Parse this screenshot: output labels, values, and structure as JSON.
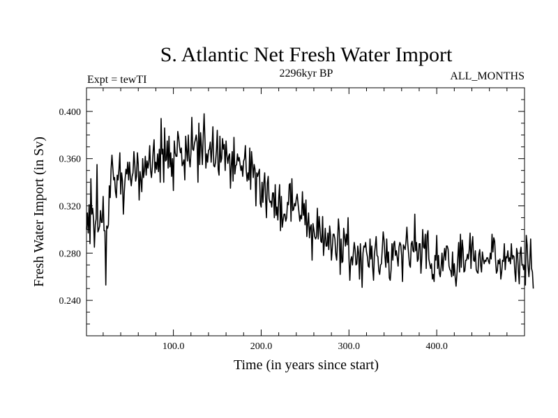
{
  "chart_data": {
    "type": "line",
    "title": "S. Atlantic Net Fresh Water Import",
    "subtitle_left": "Expt = tewTI",
    "subtitle_center": "2296kyr BP",
    "subtitle_right": "ALL_MONTHS",
    "xlabel": "Time (in years since start)",
    "ylabel": "Fresh Water Import (in Sv)",
    "xlim": [
      1,
      500
    ],
    "ylim": [
      0.21,
      0.42
    ],
    "x_ticks": [
      100,
      200,
      300,
      400
    ],
    "x_tick_labels": [
      "100.0",
      "200.0",
      "300.0",
      "400.0"
    ],
    "y_ticks": [
      0.24,
      0.28,
      0.32,
      0.36,
      0.4
    ],
    "y_tick_labels": [
      "0.240",
      "0.280",
      "0.320",
      "0.360",
      "0.400"
    ],
    "grid": false,
    "series": [
      {
        "name": "Fresh Water Import",
        "color": "#000000",
        "x_start": 1,
        "x_step": 1,
        "values": [
          0.3,
          0.314,
          0.297,
          0.321,
          0.288,
          0.343,
          0.313,
          0.318,
          0.309,
          0.285,
          0.304,
          0.309,
          0.355,
          0.298,
          0.3,
          0.303,
          0.316,
          0.306,
          0.306,
          0.328,
          0.299,
          0.299,
          0.253,
          0.303,
          0.301,
          0.304,
          0.337,
          0.327,
          0.351,
          0.363,
          0.352,
          0.342,
          0.344,
          0.332,
          0.327,
          0.346,
          0.342,
          0.351,
          0.365,
          0.33,
          0.348,
          0.341,
          0.313,
          0.331,
          0.343,
          0.351,
          0.347,
          0.357,
          0.342,
          0.357,
          0.344,
          0.337,
          0.345,
          0.348,
          0.366,
          0.355,
          0.341,
          0.345,
          0.365,
          0.355,
          0.325,
          0.349,
          0.342,
          0.332,
          0.36,
          0.344,
          0.35,
          0.362,
          0.346,
          0.358,
          0.352,
          0.357,
          0.371,
          0.35,
          0.344,
          0.353,
          0.367,
          0.376,
          0.348,
          0.357,
          0.351,
          0.364,
          0.349,
          0.368,
          0.34,
          0.394,
          0.364,
          0.368,
          0.34,
          0.386,
          0.358,
          0.359,
          0.375,
          0.352,
          0.379,
          0.353,
          0.365,
          0.345,
          0.36,
          0.333,
          0.375,
          0.365,
          0.362,
          0.362,
          0.383,
          0.378,
          0.37,
          0.365,
          0.369,
          0.354,
          0.356,
          0.359,
          0.342,
          0.379,
          0.367,
          0.358,
          0.38,
          0.36,
          0.353,
          0.365,
          0.395,
          0.368,
          0.367,
          0.373,
          0.376,
          0.38,
          0.374,
          0.34,
          0.39,
          0.355,
          0.382,
          0.37,
          0.355,
          0.379,
          0.398,
          0.375,
          0.352,
          0.364,
          0.357,
          0.367,
          0.368,
          0.374,
          0.357,
          0.369,
          0.387,
          0.354,
          0.353,
          0.357,
          0.367,
          0.384,
          0.351,
          0.346,
          0.379,
          0.357,
          0.36,
          0.377,
          0.368,
          0.372,
          0.35,
          0.375,
          0.363,
          0.356,
          0.362,
          0.364,
          0.335,
          0.354,
          0.366,
          0.341,
          0.378,
          0.347,
          0.354,
          0.355,
          0.364,
          0.358,
          0.361,
          0.355,
          0.35,
          0.354,
          0.345,
          0.358,
          0.36,
          0.371,
          0.35,
          0.341,
          0.348,
          0.342,
          0.369,
          0.334,
          0.366,
          0.356,
          0.344,
          0.355,
          0.351,
          0.32,
          0.348,
          0.345,
          0.348,
          0.351,
          0.322,
          0.319,
          0.34,
          0.323,
          0.339,
          0.348,
          0.327,
          0.31,
          0.339,
          0.345,
          0.326,
          0.323,
          0.324,
          0.319,
          0.331,
          0.331,
          0.31,
          0.338,
          0.312,
          0.319,
          0.308,
          0.327,
          0.338,
          0.299,
          0.328,
          0.302,
          0.308,
          0.313,
          0.313,
          0.307,
          0.31,
          0.323,
          0.321,
          0.338,
          0.339,
          0.307,
          0.343,
          0.316,
          0.317,
          0.322,
          0.32,
          0.326,
          0.33,
          0.322,
          0.315,
          0.307,
          0.312,
          0.309,
          0.332,
          0.312,
          0.322,
          0.304,
          0.325,
          0.294,
          0.305,
          0.314,
          0.293,
          0.302,
          0.304,
          0.274,
          0.305,
          0.3,
          0.294,
          0.292,
          0.294,
          0.318,
          0.292,
          0.311,
          0.301,
          0.29,
          0.289,
          0.311,
          0.278,
          0.289,
          0.301,
          0.286,
          0.286,
          0.297,
          0.283,
          0.303,
          0.295,
          0.274,
          0.284,
          0.296,
          0.296,
          0.292,
          0.279,
          0.274,
          0.289,
          0.309,
          0.299,
          0.262,
          0.292,
          0.272,
          0.273,
          0.301,
          0.294,
          0.286,
          0.296,
          0.287,
          0.31,
          0.276,
          0.257,
          0.274,
          0.277,
          0.27,
          0.28,
          0.289,
          0.283,
          0.27,
          0.271,
          0.286,
          0.28,
          0.258,
          0.288,
          0.272,
          0.251,
          0.28,
          0.286,
          0.285,
          0.289,
          0.281,
          0.277,
          0.269,
          0.268,
          0.292,
          0.275,
          0.286,
          0.268,
          0.257,
          0.279,
          0.286,
          0.294,
          0.278,
          0.277,
          0.265,
          0.262,
          0.27,
          0.271,
          0.284,
          0.298,
          0.291,
          0.277,
          0.268,
          0.292,
          0.272,
          0.281,
          0.259,
          0.257,
          0.266,
          0.288,
          0.274,
          0.288,
          0.29,
          0.278,
          0.282,
          0.276,
          0.269,
          0.285,
          0.289,
          0.287,
          0.278,
          0.256,
          0.287,
          0.285,
          0.283,
          0.29,
          0.302,
          0.288,
          0.279,
          0.27,
          0.268,
          0.288,
          0.29,
          0.282,
          0.281,
          0.313,
          0.282,
          0.289,
          0.273,
          0.275,
          0.288,
          0.288,
          0.263,
          0.276,
          0.3,
          0.285,
          0.284,
          0.296,
          0.267,
          0.295,
          0.299,
          0.275,
          0.271,
          0.267,
          0.271,
          0.258,
          0.262,
          0.256,
          0.278,
          0.274,
          0.295,
          0.267,
          0.278,
          0.263,
          0.26,
          0.268,
          0.28,
          0.265,
          0.276,
          0.284,
          0.274,
          0.286,
          0.286,
          0.283,
          0.269,
          0.266,
          0.265,
          0.26,
          0.281,
          0.261,
          0.271,
          0.26,
          0.252,
          0.262,
          0.276,
          0.289,
          0.264,
          0.296,
          0.268,
          0.291,
          0.283,
          0.264,
          0.265,
          0.274,
          0.274,
          0.279,
          0.275,
          0.283,
          0.297,
          0.267,
          0.287,
          0.294,
          0.274,
          0.273,
          0.282,
          0.266,
          0.264,
          0.263,
          0.279,
          0.283,
          0.27,
          0.264,
          0.281,
          0.275,
          0.271,
          0.274,
          0.273,
          0.276,
          0.276,
          0.273,
          0.271,
          0.28,
          0.275,
          0.296,
          0.281,
          0.293,
          0.29,
          0.274,
          0.263,
          0.265,
          0.274,
          0.271,
          0.275,
          0.258,
          0.264,
          0.274,
          0.273,
          0.288,
          0.266,
          0.277,
          0.276,
          0.282,
          0.273,
          0.276,
          0.271,
          0.288,
          0.275,
          0.278,
          0.277,
          0.264,
          0.256,
          0.284,
          0.28,
          0.265,
          0.254,
          0.28,
          0.285,
          0.271,
          0.27,
          0.266,
          0.27,
          0.253,
          0.295,
          0.287,
          0.269,
          0.26,
          0.272,
          0.292,
          0.267,
          0.264,
          0.25
        ]
      }
    ]
  }
}
